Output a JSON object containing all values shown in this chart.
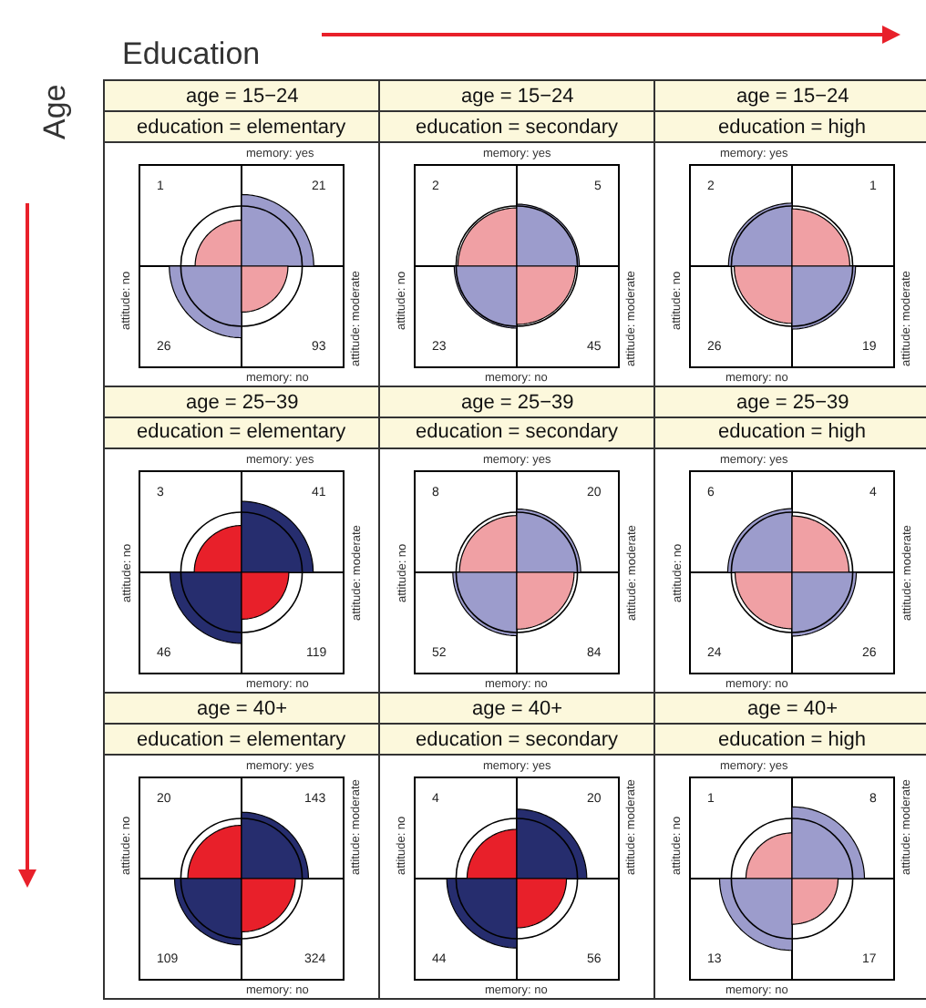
{
  "chart_data": [
    {
      "type": "other",
      "title": "age = 15−24",
      "subtitle": "education = elementary",
      "x2label": "memory: yes",
      "xlabel": "memory: no",
      "ylabel": "attitude: no",
      "y2label": "attitude: moderate",
      "values": [
        1,
        21,
        26,
        93
      ],
      "colors": [
        "#f0a0a4",
        "#9c9ccc",
        "#9c9ccc",
        "#f0a0a4"
      ],
      "data_labels": true,
      "annotations": [
        "Education",
        "Age"
      ]
    },
    {
      "type": "other",
      "title": "age = 15−24",
      "subtitle": "education = secondary",
      "x2label": "memory: yes",
      "xlabel": "memory: no",
      "ylabel": "attitude: no",
      "y2label": "attitude: moderate",
      "values": [
        2,
        5,
        23,
        45
      ],
      "colors": [
        "#f0a0a4",
        "#9c9ccc",
        "#9c9ccc",
        "#f0a0a4"
      ],
      "data_labels": true
    },
    {
      "type": "other",
      "title": "age = 15−24",
      "subtitle": "education = high",
      "x2label": "memory: yes",
      "xlabel": "memory: no",
      "ylabel": "attitude: no",
      "y2label": "attitude: moderate",
      "values": [
        2,
        1,
        26,
        19
      ],
      "colors": [
        "#9c9ccc",
        "#f0a0a4",
        "#f0a0a4",
        "#9c9ccc"
      ],
      "data_labels": true
    },
    {
      "type": "other",
      "title": "age = 25−39",
      "subtitle": "education = elementary",
      "x2label": "memory: yes",
      "xlabel": "memory: no",
      "ylabel": "attitude: no",
      "y2label": "attitude: moderate",
      "values": [
        3,
        41,
        46,
        119
      ],
      "colors": [
        "#e8202a",
        "#262d6e",
        "#262d6e",
        "#e8202a"
      ],
      "data_labels": true
    },
    {
      "type": "other",
      "title": "age = 25−39",
      "subtitle": "education = secondary",
      "x2label": "memory: yes",
      "xlabel": "memory: no",
      "ylabel": "attitude: no",
      "y2label": "attitude: moderate",
      "values": [
        8,
        20,
        52,
        84
      ],
      "colors": [
        "#f0a0a4",
        "#9c9ccc",
        "#9c9ccc",
        "#f0a0a4"
      ],
      "data_labels": true
    },
    {
      "type": "other",
      "title": "age = 25−39",
      "subtitle": "education = high",
      "x2label": "memory: yes",
      "xlabel": "memory: no",
      "ylabel": "attitude: no",
      "y2label": "attitude: moderate",
      "values": [
        6,
        4,
        24,
        26
      ],
      "colors": [
        "#9c9ccc",
        "#f0a0a4",
        "#f0a0a4",
        "#9c9ccc"
      ],
      "data_labels": true
    },
    {
      "type": "other",
      "title": "age = 40+",
      "subtitle": "education = elementary",
      "x2label": "memory: yes",
      "xlabel": "memory: no",
      "ylabel": "attitude: no",
      "y2label": "attitude: moderate",
      "values": [
        20,
        143,
        109,
        324
      ],
      "colors": [
        "#e8202a",
        "#262d6e",
        "#262d6e",
        "#e8202a"
      ],
      "data_labels": true
    },
    {
      "type": "other",
      "title": "age = 40+",
      "subtitle": "education = secondary",
      "x2label": "memory: yes",
      "xlabel": "memory: no",
      "ylabel": "attitude: no",
      "y2label": "attitude: moderate",
      "values": [
        4,
        20,
        44,
        56
      ],
      "colors": [
        "#e8202a",
        "#262d6e",
        "#262d6e",
        "#e8202a"
      ],
      "data_labels": true
    },
    {
      "type": "other",
      "title": "age = 40+",
      "subtitle": "education = high",
      "x2label": "memory: yes",
      "xlabel": "memory: no",
      "ylabel": "attitude: no",
      "y2label": "attitude: moderate",
      "values": [
        1,
        8,
        13,
        17
      ],
      "colors": [
        "#f0a0a4",
        "#9c9ccc",
        "#9c9ccc",
        "#f0a0a4"
      ],
      "data_labels": true
    }
  ]
}
